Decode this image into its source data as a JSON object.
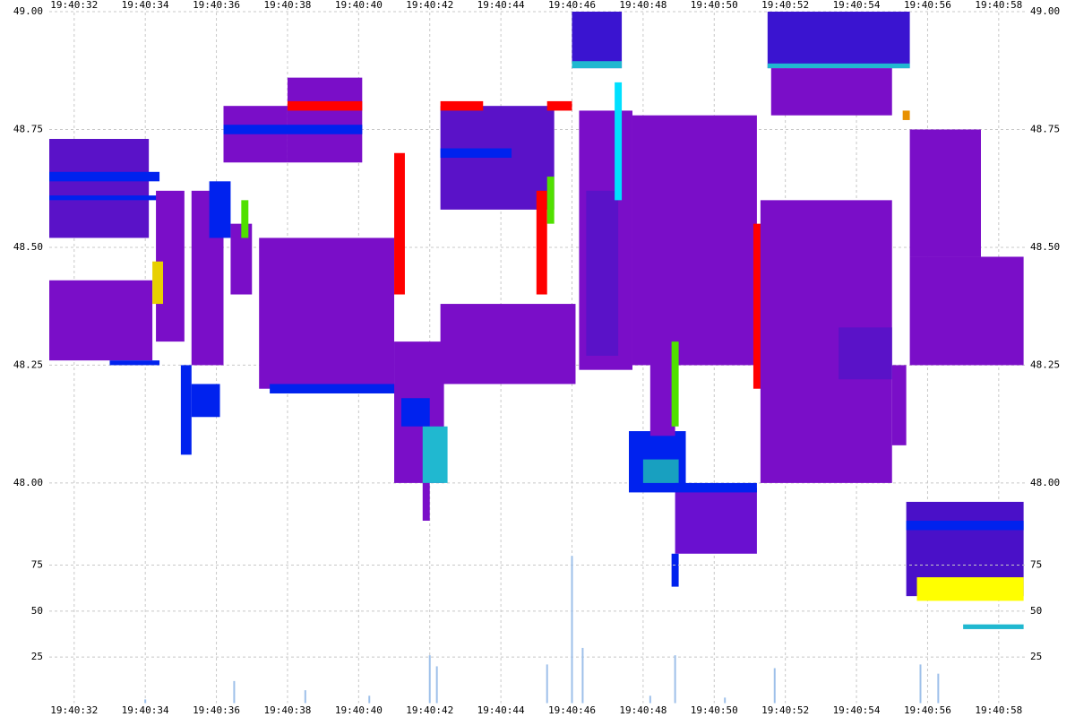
{
  "chart_data": [
    {
      "type": "heatmap",
      "xlim": [
        31.3,
        58.76
      ],
      "xticks": [
        {
          "value": 32,
          "label": "19:40:32"
        },
        {
          "value": 34,
          "label": "19:40:34"
        },
        {
          "value": 36,
          "label": "19:40:36"
        },
        {
          "value": 38,
          "label": "19:40:38"
        },
        {
          "value": 40,
          "label": "19:40:40"
        },
        {
          "value": 42,
          "label": "19:40:42"
        },
        {
          "value": 44,
          "label": "19:40:44"
        },
        {
          "value": 46,
          "label": "19:40:46"
        },
        {
          "value": 48,
          "label": "19:40:48"
        },
        {
          "value": 50,
          "label": "19:40:50"
        },
        {
          "value": 52,
          "label": "19:40:52"
        },
        {
          "value": 54,
          "label": "19:40:54"
        },
        {
          "value": 56,
          "label": "19:40:56"
        },
        {
          "value": 58,
          "label": "19:40:58"
        }
      ],
      "ylim": [
        47.533,
        49.0095
      ],
      "yticks": [
        {
          "value": 49,
          "label": "49.00"
        },
        {
          "value": 48.75,
          "label": "48.75"
        },
        {
          "value": 48.5,
          "label": "48.50"
        },
        {
          "value": 48.25,
          "label": "48.25"
        },
        {
          "value": 48,
          "label": "48.00"
        }
      ],
      "grid": true,
      "blocks": [
        {
          "t": [
            31.3,
            34.1
          ],
          "p": [
            48.52,
            48.73
          ],
          "color": "#5a12c8"
        },
        {
          "t": [
            31.3,
            34.4
          ],
          "p": [
            48.64,
            48.66
          ],
          "color": "#0022ee"
        },
        {
          "t": [
            31.3,
            34.5
          ],
          "p": [
            48.6,
            48.61
          ],
          "color": "#0022ee"
        },
        {
          "t": [
            31.3,
            34.2
          ],
          "p": [
            48.26,
            48.43
          ],
          "color": "#7a0ec8"
        },
        {
          "t": [
            33.0,
            34.4
          ],
          "p": [
            48.25,
            48.26
          ],
          "color": "#0022ee"
        },
        {
          "t": [
            34.3,
            35.1
          ],
          "p": [
            48.3,
            48.62
          ],
          "color": "#7a0ec8"
        },
        {
          "t": [
            34.2,
            34.5
          ],
          "p": [
            48.38,
            48.47
          ],
          "color": "#e8d000"
        },
        {
          "t": [
            35.0,
            35.3
          ],
          "p": [
            48.06,
            48.25
          ],
          "color": "#0022ee"
        },
        {
          "t": [
            35.3,
            36.1
          ],
          "p": [
            48.14,
            48.21
          ],
          "color": "#0022ee"
        },
        {
          "t": [
            35.3,
            36.2
          ],
          "p": [
            48.25,
            48.62
          ],
          "color": "#7a0ec8"
        },
        {
          "t": [
            35.8,
            36.4
          ],
          "p": [
            48.52,
            48.64
          ],
          "color": "#0022ee"
        },
        {
          "t": [
            36.2,
            38.0
          ],
          "p": [
            48.68,
            48.8
          ],
          "color": "#7a0ec8"
        },
        {
          "t": [
            38.0,
            40.1
          ],
          "p": [
            48.68,
            48.86
          ],
          "color": "#7a0ec8"
        },
        {
          "t": [
            38.0,
            40.1
          ],
          "p": [
            48.79,
            48.81
          ],
          "color": "#ff0000"
        },
        {
          "t": [
            36.2,
            40.1
          ],
          "p": [
            48.74,
            48.76
          ],
          "color": "#0022ee"
        },
        {
          "t": [
            37.2,
            41.0
          ],
          "p": [
            48.2,
            48.52
          ],
          "color": "#7a0ec8"
        },
        {
          "t": [
            37.5,
            41.2
          ],
          "p": [
            48.19,
            48.21
          ],
          "color": "#0022ee"
        },
        {
          "t": [
            36.4,
            37.0
          ],
          "p": [
            48.4,
            48.55
          ],
          "color": "#7a0ec8"
        },
        {
          "t": [
            36.7,
            36.9
          ],
          "p": [
            48.52,
            48.6
          ],
          "color": "#50e000"
        },
        {
          "t": [
            41.0,
            41.3
          ],
          "p": [
            48.4,
            48.7
          ],
          "color": "#ff0000"
        },
        {
          "t": [
            41.0,
            42.4
          ],
          "p": [
            48.0,
            48.3
          ],
          "color": "#7a0ec8"
        },
        {
          "t": [
            41.2,
            42.0
          ],
          "p": [
            48.12,
            48.18
          ],
          "color": "#0022ee"
        },
        {
          "t": [
            41.8,
            42.5
          ],
          "p": [
            48.0,
            48.12
          ],
          "color": "#20b8d0"
        },
        {
          "t": [
            41.8,
            42.0
          ],
          "p": [
            47.92,
            48.0
          ],
          "color": "#7a0ec8"
        },
        {
          "t": [
            42.3,
            45.5
          ],
          "p": [
            48.58,
            48.8
          ],
          "color": "#5a12c8"
        },
        {
          "t": [
            42.3,
            43.5
          ],
          "p": [
            48.79,
            48.81
          ],
          "color": "#ff0000"
        },
        {
          "t": [
            45.3,
            46.0
          ],
          "p": [
            48.79,
            48.81
          ],
          "color": "#ff0000"
        },
        {
          "t": [
            42.3,
            44.3
          ],
          "p": [
            48.69,
            48.71
          ],
          "color": "#0022ee"
        },
        {
          "t": [
            42.3,
            46.1
          ],
          "p": [
            48.21,
            48.38
          ],
          "color": "#7a0ec8"
        },
        {
          "t": [
            45.0,
            45.3
          ],
          "p": [
            48.4,
            48.62
          ],
          "color": "#ff0000"
        },
        {
          "t": [
            45.3,
            45.5
          ],
          "p": [
            48.55,
            48.65
          ],
          "color": "#50e000"
        },
        {
          "t": [
            46.0,
            47.4
          ],
          "p": [
            48.88,
            49.0
          ],
          "color": "#3a14d0"
        },
        {
          "t": [
            46.0,
            47.4
          ],
          "p": [
            48.88,
            48.895
          ],
          "color": "#20b8d0"
        },
        {
          "t": [
            46.2,
            47.7
          ],
          "p": [
            48.24,
            48.79
          ],
          "color": "#7a0ec8"
        },
        {
          "t": [
            46.4,
            47.3
          ],
          "p": [
            48.27,
            48.62
          ],
          "color": "#5a12c8"
        },
        {
          "t": [
            47.2,
            47.4
          ],
          "p": [
            48.6,
            48.85
          ],
          "color": "#00e0ff"
        },
        {
          "t": [
            47.7,
            51.2
          ],
          "p": [
            48.25,
            48.78
          ],
          "color": "#7a0ec8"
        },
        {
          "t": [
            47.6,
            49.2
          ],
          "p": [
            47.98,
            48.11
          ],
          "color": "#0022ee"
        },
        {
          "t": [
            48.0,
            49.0
          ],
          "p": [
            48.0,
            48.05
          ],
          "color": "#18a0c0"
        },
        {
          "t": [
            48.2,
            48.9
          ],
          "p": [
            48.1,
            48.35
          ],
          "color": "#7a0ec8"
        },
        {
          "t": [
            48.8,
            49.0
          ],
          "p": [
            48.12,
            48.3
          ],
          "color": "#50e000"
        },
        {
          "t": [
            48.9,
            51.2
          ],
          "p": [
            47.85,
            47.99
          ],
          "color": "#6a10d0"
        },
        {
          "t": [
            48.9,
            51.2
          ],
          "p": [
            47.98,
            48.0
          ],
          "color": "#0022ee"
        },
        {
          "t": [
            48.8,
            49.0
          ],
          "p": [
            47.78,
            47.85
          ],
          "color": "#0022ee"
        },
        {
          "t": [
            51.1,
            51.4
          ],
          "p": [
            48.2,
            48.55
          ],
          "color": "#ff0000"
        },
        {
          "t": [
            51.5,
            55.5
          ],
          "p": [
            48.88,
            49.0
          ],
          "color": "#3a14d0"
        },
        {
          "t": [
            51.5,
            55.5
          ],
          "p": [
            48.88,
            48.89
          ],
          "color": "#20b8d0"
        },
        {
          "t": [
            51.3,
            55.0
          ],
          "p": [
            48.0,
            48.6
          ],
          "color": "#7a0ec8"
        },
        {
          "t": [
            51.6,
            55.0
          ],
          "p": [
            48.78,
            48.88
          ],
          "color": "#7a0ec8"
        },
        {
          "t": [
            53.5,
            55.0
          ],
          "p": [
            48.22,
            48.33
          ],
          "color": "#5a12c8"
        },
        {
          "t": [
            55.4,
            58.7
          ],
          "p": [
            47.76,
            47.96
          ],
          "color": "#4a10c8"
        },
        {
          "t": [
            55.4,
            58.7
          ],
          "p": [
            47.9,
            47.92
          ],
          "color": "#0022ee"
        },
        {
          "t": [
            55.7,
            58.7
          ],
          "p": [
            47.75,
            47.8
          ],
          "color": "#ffff00"
        },
        {
          "t": [
            57.0,
            58.7
          ],
          "p": [
            47.69,
            47.7
          ],
          "color": "#20b8d0"
        },
        {
          "t": [
            55.5,
            58.7
          ],
          "p": [
            48.25,
            48.48
          ],
          "color": "#7a0ec8"
        },
        {
          "t": [
            55.5,
            57.5
          ],
          "p": [
            48.48,
            48.75
          ],
          "color": "#7a0ec8"
        },
        {
          "t": [
            55.0,
            55.4
          ],
          "p": [
            48.08,
            48.25
          ],
          "color": "#7a0ec8"
        },
        {
          "t": [
            55.3,
            55.5
          ],
          "p": [
            48.77,
            48.79
          ],
          "color": "#e89000"
        }
      ]
    },
    {
      "type": "bar",
      "x": [
        34.0,
        36.5,
        38.5,
        40.3,
        42.0,
        42.2,
        45.3,
        46.0,
        46.3,
        48.2,
        48.9,
        50.3,
        51.7,
        55.8,
        56.3
      ],
      "values": [
        2,
        12,
        7,
        4,
        26,
        20,
        21,
        80,
        30,
        4,
        26,
        3,
        19,
        21,
        16
      ],
      "color": "#9ec0ea",
      "ylim": [
        0,
        85
      ],
      "yticks": [
        75,
        50,
        25
      ]
    }
  ]
}
